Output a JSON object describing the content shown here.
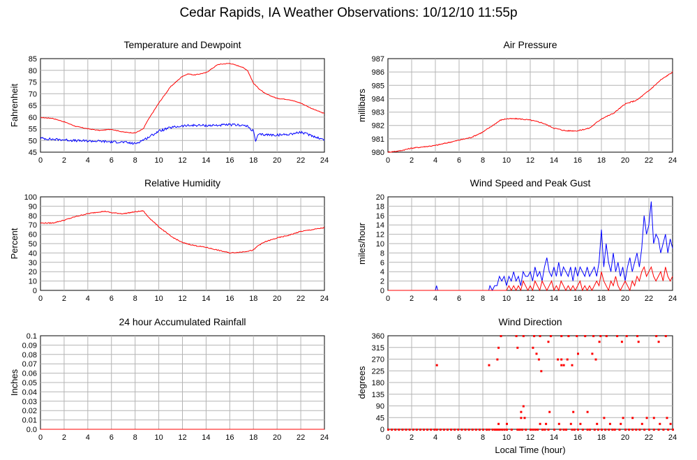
{
  "page_title": "Cedar Rapids, IA Weather Observations: 10/12/10 11:55p",
  "colors": {
    "red": "#ff0000",
    "blue": "#0000ff",
    "grid": "#b4b4b4"
  },
  "chart_data": [
    {
      "id": "temp",
      "type": "line",
      "title": "Temperature and Dewpoint",
      "ylabel": "Fahrenheit",
      "xlabel": "",
      "xlim": [
        0,
        24
      ],
      "ylim": [
        45,
        85
      ],
      "yticks": [
        45,
        50,
        55,
        60,
        65,
        70,
        75,
        80,
        85
      ],
      "grid": true,
      "series": [
        {
          "color": "#ff0000",
          "noise": 0.15,
          "x": [
            0,
            1,
            2,
            3,
            4,
            5,
            6,
            7,
            8,
            8.7,
            9,
            10,
            11,
            12,
            12.5,
            13,
            14,
            15,
            16,
            17,
            17.5,
            18,
            18.5,
            19,
            20,
            21,
            22,
            23,
            24
          ],
          "values": [
            59.8,
            59.5,
            58,
            56,
            55,
            54.3,
            54.8,
            53.6,
            53.2,
            55,
            58,
            66,
            73,
            77.5,
            78.5,
            78,
            79,
            82.5,
            83,
            81.5,
            80,
            74.5,
            72,
            70,
            68,
            67.5,
            66,
            63.5,
            61.5
          ]
        },
        {
          "color": "#0000ff",
          "noise": 0.5,
          "x": [
            0,
            1,
            2,
            3,
            4,
            5,
            6,
            7,
            8,
            9,
            10,
            11,
            12,
            13,
            14,
            15,
            16,
            17,
            17.5,
            18,
            18.2,
            18.4,
            19,
            20,
            21,
            22,
            23,
            24
          ],
          "values": [
            51,
            50.5,
            50.3,
            49.9,
            49.8,
            49.7,
            49.4,
            49.3,
            48.6,
            51,
            54,
            55.5,
            56.2,
            56.5,
            56.4,
            56.5,
            56.7,
            56.6,
            56,
            54,
            49.5,
            52.5,
            52.5,
            52.3,
            52.7,
            53.5,
            52,
            50.2
          ]
        }
      ]
    },
    {
      "id": "pressure",
      "type": "line",
      "title": "Air Pressure",
      "ylabel": "millibars",
      "xlabel": "",
      "xlim": [
        0,
        24
      ],
      "ylim": [
        980,
        987
      ],
      "yticks": [
        980,
        981,
        982,
        983,
        984,
        985,
        986,
        987
      ],
      "grid": true,
      "series": [
        {
          "color": "#ff0000",
          "noise": 0.04,
          "x": [
            0,
            1,
            2,
            3,
            4,
            5,
            6,
            7,
            8,
            9,
            9.5,
            10,
            11,
            12,
            13,
            14,
            15,
            16,
            17,
            18,
            19,
            20,
            21,
            22,
            23,
            24
          ],
          "values": [
            980.0,
            980.1,
            980.3,
            980.4,
            980.5,
            980.7,
            980.9,
            981.1,
            981.5,
            982.1,
            982.4,
            982.5,
            982.5,
            982.4,
            982.2,
            981.8,
            981.6,
            981.6,
            981.8,
            982.5,
            982.9,
            983.6,
            983.9,
            984.6,
            985.4,
            986.0
          ]
        }
      ]
    },
    {
      "id": "humidity",
      "type": "line",
      "title": "Relative Humidity",
      "ylabel": "Percent",
      "xlabel": "",
      "xlim": [
        0,
        24
      ],
      "ylim": [
        0,
        100
      ],
      "yticks": [
        0,
        10,
        20,
        30,
        40,
        50,
        60,
        70,
        80,
        90,
        100
      ],
      "grid": true,
      "series": [
        {
          "color": "#ff0000",
          "noise": 0.5,
          "x": [
            0,
            1,
            2,
            3,
            4,
            5,
            5.5,
            6,
            7,
            8,
            8.7,
            9,
            10,
            11,
            12,
            13,
            14,
            15,
            16,
            17,
            17.5,
            18,
            18.4,
            19,
            20,
            21,
            22,
            23,
            24
          ],
          "values": [
            72,
            72,
            75,
            79,
            82,
            84,
            84.5,
            83,
            82,
            84,
            85,
            80,
            68,
            58,
            51,
            48,
            46,
            43,
            40,
            41,
            42,
            43,
            48,
            52,
            56,
            59,
            63,
            65,
            67
          ]
        }
      ]
    },
    {
      "id": "wind",
      "type": "line",
      "title": "Wind Speed and Peak Gust",
      "ylabel": "miles/hour",
      "xlabel": "",
      "xlim": [
        0,
        24
      ],
      "ylim": [
        0,
        20
      ],
      "yticks": [
        0,
        2,
        4,
        6,
        8,
        10,
        12,
        14,
        16,
        18,
        20
      ],
      "grid": true,
      "series": [
        {
          "color": "#0000ff",
          "noise": 0,
          "x": [
            0,
            4,
            4.1,
            4.2,
            4.3,
            8.3,
            8.5,
            8.6,
            8.8,
            9,
            9.2,
            9.4,
            9.6,
            9.8,
            10,
            10.2,
            10.4,
            10.6,
            10.8,
            11,
            11.2,
            11.4,
            11.6,
            11.8,
            12,
            12.2,
            12.4,
            12.6,
            12.8,
            13,
            13.2,
            13.4,
            13.6,
            13.8,
            14,
            14.2,
            14.4,
            14.6,
            14.8,
            15,
            15.2,
            15.4,
            15.6,
            15.8,
            16,
            16.2,
            16.4,
            16.6,
            16.8,
            17,
            17.2,
            17.4,
            17.6,
            17.8,
            18,
            18.2,
            18.4,
            18.6,
            18.8,
            19,
            19.2,
            19.4,
            19.6,
            19.8,
            20,
            20.2,
            20.4,
            20.6,
            20.8,
            21,
            21.2,
            21.4,
            21.6,
            21.8,
            22,
            22.2,
            22.4,
            22.6,
            22.8,
            23,
            23.2,
            23.4,
            23.6,
            23.8,
            24
          ],
          "values": [
            0,
            0,
            1,
            0,
            0,
            0,
            0,
            1,
            0,
            1,
            1,
            3,
            2,
            3,
            1,
            3,
            2,
            4,
            2,
            3,
            1,
            4,
            3,
            3,
            4,
            2,
            5,
            3,
            4,
            2,
            5,
            7,
            4,
            3,
            5,
            3,
            6,
            3,
            5,
            4,
            3,
            5,
            2,
            5,
            3,
            5,
            4,
            3,
            5,
            3,
            4,
            5,
            3,
            6,
            13,
            5,
            10,
            6,
            4,
            8,
            4,
            6,
            3,
            5,
            2,
            5,
            7,
            4,
            6,
            8,
            5,
            9,
            16,
            12,
            14,
            19,
            10,
            12,
            11,
            8,
            10,
            12,
            8,
            11,
            9
          ]
        },
        {
          "color": "#ff0000",
          "noise": 0,
          "x": [
            0,
            9.5,
            10,
            10.2,
            10.4,
            10.6,
            10.8,
            11,
            11.2,
            11.4,
            11.6,
            11.8,
            12,
            12.2,
            12.4,
            12.6,
            12.8,
            13,
            13.2,
            13.4,
            13.6,
            13.8,
            14,
            14.2,
            14.4,
            14.6,
            14.8,
            15,
            15.2,
            15.4,
            15.6,
            15.8,
            16,
            16.2,
            16.4,
            16.6,
            16.8,
            17,
            17.2,
            17.4,
            17.6,
            17.8,
            18,
            18.2,
            18.4,
            18.6,
            18.8,
            19,
            19.2,
            19.4,
            19.6,
            19.8,
            20,
            20.2,
            20.4,
            20.6,
            20.8,
            21,
            21.2,
            21.4,
            21.6,
            21.8,
            22,
            22.2,
            22.4,
            22.6,
            22.8,
            23,
            23.2,
            23.4,
            23.6,
            23.8,
            24
          ],
          "values": [
            0,
            0,
            0,
            1,
            0,
            1,
            0,
            1,
            0,
            2,
            1,
            0,
            1,
            0,
            2,
            1,
            0,
            2,
            1,
            0,
            1,
            2,
            0,
            1,
            0,
            2,
            1,
            0,
            1,
            0,
            1,
            0,
            1,
            2,
            0,
            1,
            0,
            1,
            0,
            1,
            2,
            1,
            4,
            2,
            1,
            0,
            2,
            1,
            3,
            1,
            0,
            1,
            2,
            1,
            0,
            2,
            1,
            3,
            2,
            4,
            5,
            3,
            4,
            5,
            3,
            2,
            3,
            4,
            2,
            5,
            3,
            2,
            3
          ]
        }
      ]
    },
    {
      "id": "rain",
      "type": "line",
      "title": "24 hour Accumulated Rainfall",
      "ylabel": "Inches",
      "xlabel": "",
      "xlim": [
        0,
        24
      ],
      "ylim": [
        0,
        0.1
      ],
      "yticks": [
        0.0,
        0.01,
        0.02,
        0.03,
        0.04,
        0.05,
        0.06,
        0.07,
        0.08,
        0.09,
        0.1
      ],
      "ytick_labels": [
        "0.0",
        "0.01",
        "0.02",
        "0.03",
        "0.04",
        "0.05",
        "0.06",
        "0.07",
        "0.08",
        "0.09",
        "0.1"
      ],
      "grid": true,
      "series": [
        {
          "color": "#ff0000",
          "noise": 0,
          "x": [
            0,
            24
          ],
          "values": [
            0,
            0
          ]
        }
      ]
    },
    {
      "id": "direction",
      "type": "scatter",
      "title": "Wind Direction",
      "ylabel": "degrees",
      "xlabel": "Local Time (hour)",
      "xlim": [
        0,
        24
      ],
      "ylim": [
        0,
        360
      ],
      "yticks": [
        0,
        45,
        90,
        135,
        180,
        225,
        270,
        315,
        360
      ],
      "grid": true,
      "series": [
        {
          "color": "#ff0000",
          "x": [
            0.0,
            0.3,
            0.6,
            0.9,
            1.2,
            1.5,
            1.8,
            2.1,
            2.4,
            2.7,
            3.0,
            3.3,
            3.6,
            3.9,
            4.1,
            4.4,
            4.7,
            5.0,
            5.3,
            5.6,
            5.9,
            6.2,
            6.5,
            6.8,
            7.1,
            7.4,
            7.7,
            8.0,
            8.3,
            8.5,
            8.8,
            9.0,
            9.1,
            9.2,
            9.3,
            9.4,
            9.6,
            9.8,
            10.0,
            10.4,
            10.9,
            11.0,
            11.1,
            11.3,
            11.6,
            12.0,
            12.2,
            12.4,
            12.6,
            13.0,
            13.2,
            13.5,
            14.0,
            14.5,
            14.8,
            15.0,
            15.5,
            15.7,
            16.0,
            16.4,
            16.8,
            17.0,
            17.4,
            17.7,
            18.0,
            18.3,
            18.6,
            18.9,
            19.1,
            19.5,
            20.0,
            20.3,
            20.6,
            20.9,
            21.2,
            21.6,
            22.0,
            22.4,
            22.8,
            23.2,
            23.6,
            24.0,
            4.1,
            8.5,
            9.2,
            9.5,
            10.8,
            11.4,
            12.3,
            12.8,
            13.7,
            14.6,
            15.2,
            15.9,
            16.6,
            17.3,
            17.9,
            18.4,
            19.3,
            20.1,
            21.0,
            22.6,
            23.4,
            9.3,
            10.0,
            11.2,
            11.5,
            12.8,
            13.3,
            14.4,
            15.4,
            16.2,
            17.6,
            18.7,
            19.6,
            21.4,
            22.9,
            23.8,
            11.2,
            11.4,
            13.6,
            15.6,
            16.8,
            18.2,
            19.8,
            20.6,
            21.8,
            22.4,
            23.5,
            12.5,
            12.7,
            14.3,
            14.6,
            15.1,
            15.5,
            17.2,
            17.5,
            12.9,
            14.6,
            14.8,
            16.0,
            9.3,
            10.9,
            12.2,
            13.5,
            17.8,
            19.7,
            21.1,
            22.8
          ],
          "values": [
            0,
            0,
            0,
            0,
            0,
            0,
            0,
            0,
            0,
            0,
            0,
            0,
            0,
            0,
            0,
            0,
            0,
            0,
            0,
            0,
            0,
            0,
            0,
            0,
            0,
            0,
            0,
            0,
            0,
            0,
            0,
            0,
            0,
            0,
            0,
            0,
            0,
            0,
            0,
            0,
            0,
            0,
            0,
            0,
            0,
            0,
            0,
            0,
            0,
            0,
            0,
            0,
            0,
            0,
            0,
            0,
            0,
            0,
            0,
            0,
            0,
            0,
            0,
            0,
            0,
            0,
            0,
            0,
            0,
            0,
            0,
            0,
            0,
            0,
            0,
            0,
            0,
            0,
            0,
            0,
            0,
            0,
            248,
            248,
            270,
            360,
            360,
            360,
            360,
            360,
            360,
            360,
            360,
            360,
            360,
            360,
            360,
            360,
            360,
            360,
            360,
            360,
            360,
            22,
            22,
            45,
            45,
            22,
            22,
            22,
            22,
            22,
            22,
            22,
            22,
            22,
            22,
            22,
            68,
            90,
            68,
            68,
            68,
            45,
            45,
            45,
            45,
            45,
            45,
            292,
            270,
            270,
            248,
            270,
            248,
            292,
            270,
            225,
            270,
            248,
            292,
            315,
            315,
            315,
            338,
            338,
            338,
            338,
            338
          ]
        }
      ]
    }
  ]
}
